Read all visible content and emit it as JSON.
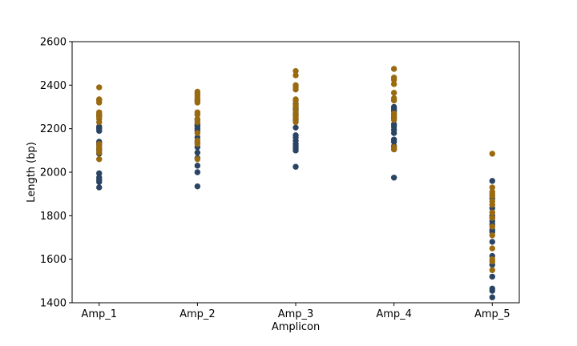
{
  "chart_data": {
    "type": "scatter",
    "title": "",
    "xlabel": "Amplicon",
    "ylabel": "Length (bp)",
    "categories": [
      "Amp_1",
      "Amp_2",
      "Amp_3",
      "Amp_4",
      "Amp_5"
    ],
    "ylim": [
      1400,
      2600
    ],
    "yticks": [
      "1400",
      "1600",
      "1800",
      "2000",
      "2200",
      "2400",
      "2600"
    ],
    "grid": false,
    "legend": "none",
    "series": [
      {
        "color": "#2a4463",
        "points": [
          {
            "x": "Amp_1",
            "y": [
              1930,
              1955,
              1965,
              1975,
              1995,
              2085,
              2100,
              2110,
              2125,
              2135,
              2140,
              2190,
              2200,
              2205,
              2210,
              2260,
              2265
            ]
          },
          {
            "x": "Amp_2",
            "y": [
              1935,
              2000,
              2030,
              2065,
              2090,
              2115,
              2140,
              2160,
              2190,
              2200,
              2210,
              2215,
              2220,
              2240,
              2265,
              2330
            ]
          },
          {
            "x": "Amp_3",
            "y": [
              2025,
              2100,
              2110,
              2120,
              2130,
              2145,
              2160,
              2170,
              2205,
              2240,
              2260,
              2270,
              2290,
              2300,
              2315
            ]
          },
          {
            "x": "Amp_4",
            "y": [
              1975,
              2105,
              2120,
              2140,
              2150,
              2180,
              2195,
              2210,
              2220,
              2250,
              2265,
              2280,
              2290,
              2300
            ]
          },
          {
            "x": "Amp_5",
            "y": [
              1425,
              1455,
              1465,
              1520,
              1575,
              1615,
              1680,
              1725,
              1735,
              1760,
              1775,
              1790,
              1800,
              1835,
              1880,
              1960
            ]
          }
        ]
      },
      {
        "color": "#9a6a10",
        "points": [
          {
            "x": "Amp_1",
            "y": [
              2060,
              2090,
              2105,
              2115,
              2130,
              2230,
              2245,
              2255,
              2265,
              2275,
              2320,
              2330,
              2335,
              2390
            ]
          },
          {
            "x": "Amp_2",
            "y": [
              2060,
              2130,
              2145,
              2180,
              2230,
              2245,
              2265,
              2275,
              2320,
              2330,
              2340,
              2350,
              2360,
              2370
            ]
          },
          {
            "x": "Amp_3",
            "y": [
              2230,
              2245,
              2255,
              2265,
              2280,
              2300,
              2310,
              2330,
              2335,
              2380,
              2390,
              2400,
              2445,
              2465
            ]
          },
          {
            "x": "Amp_4",
            "y": [
              2105,
              2115,
              2240,
              2255,
              2270,
              2330,
              2340,
              2365,
              2405,
              2425,
              2435,
              2475
            ]
          },
          {
            "x": "Amp_5",
            "y": [
              1550,
              1590,
              1600,
              1650,
              1710,
              1750,
              1790,
              1815,
              1850,
              1865,
              1890,
              1900,
              1910,
              1930,
              2085
            ]
          }
        ]
      }
    ]
  }
}
